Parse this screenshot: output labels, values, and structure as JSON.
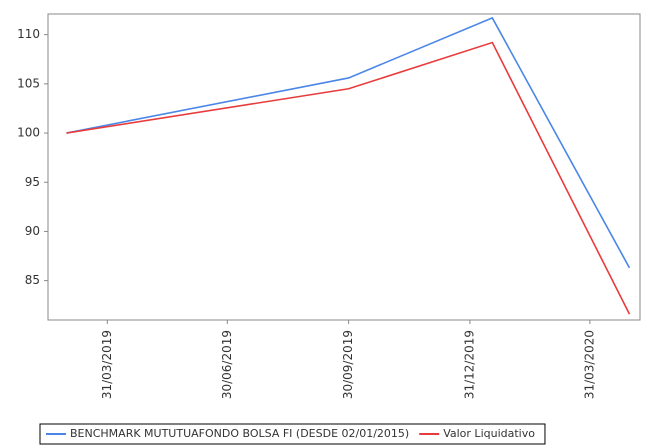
{
  "chart_data": {
    "type": "line",
    "x": [
      "28/02/2019",
      "30/09/2019",
      "17/01/2020",
      "30/04/2020"
    ],
    "series": [
      {
        "name": "BENCHMARK MUTUTUAFONDO BOLSA FI (DESDE 02/01/2015)",
        "color": "#4a86e8",
        "values": [
          100,
          105.6,
          111.7,
          86.3
        ]
      },
      {
        "name": "Valor Liquidativo",
        "color": "#e83c3c",
        "values": [
          100,
          104.5,
          109.2,
          81.6
        ]
      }
    ],
    "xlim": [
      "14/02/2019",
      "08/05/2020"
    ],
    "xticks": [
      "31/03/2019",
      "30/06/2019",
      "30/09/2019",
      "31/12/2019",
      "31/03/2020"
    ],
    "ylim": [
      81,
      112.1
    ],
    "yticks": [
      85,
      90,
      95,
      100,
      105,
      110
    ],
    "grid": false,
    "legend": "bottom"
  }
}
